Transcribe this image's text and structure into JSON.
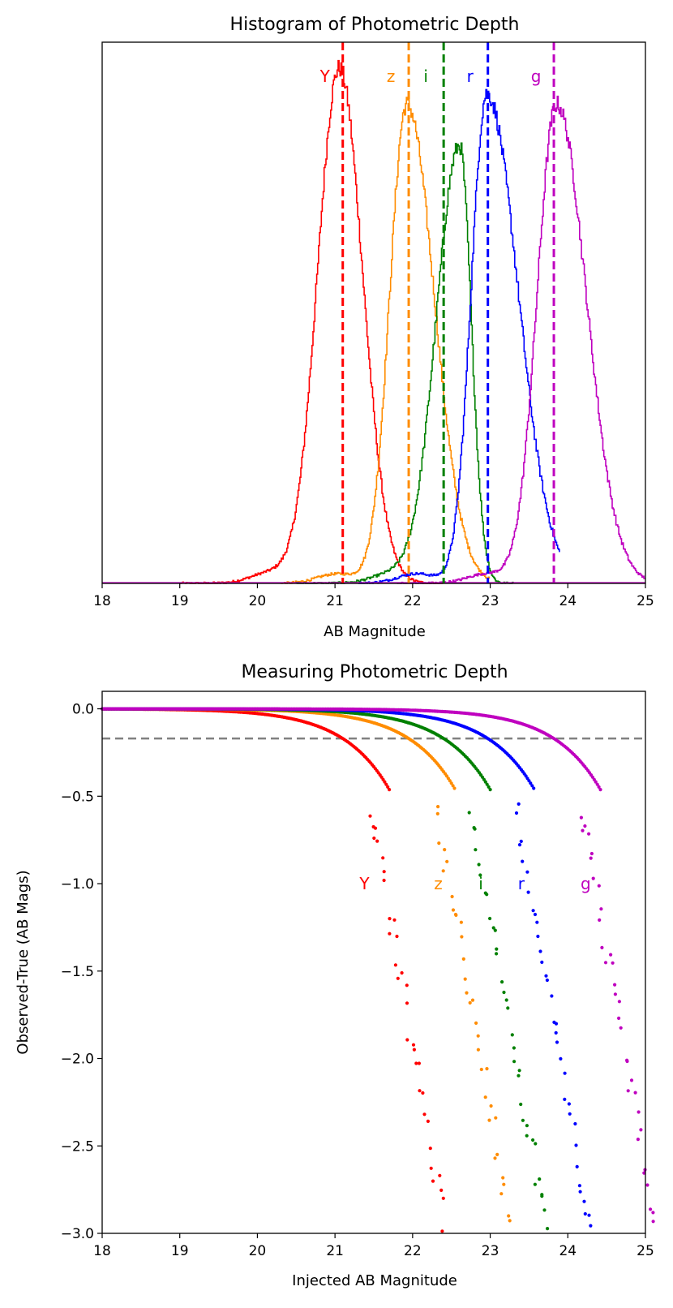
{
  "colors": {
    "Y": "#ff0000",
    "z": "#ff8c00",
    "i": "#008000",
    "r": "#0000ff",
    "g": "#bf00bf",
    "threshold": "#808080"
  },
  "bands": [
    "Y",
    "z",
    "i",
    "r",
    "g"
  ],
  "chart_data": [
    {
      "type": "line",
      "title": "Histogram of Photometric Depth",
      "xlabel": "AB Magnitude",
      "ylabel": "",
      "xlim": [
        18,
        25
      ],
      "xticks": [
        18,
        19,
        20,
        21,
        22,
        23,
        24,
        25
      ],
      "ylim": [
        0,
        1.05
      ],
      "yticks_shown": false,
      "depth_lines": [
        {
          "band": "Y",
          "x": 21.1
        },
        {
          "band": "z",
          "x": 21.95
        },
        {
          "band": "i",
          "x": 22.4
        },
        {
          "band": "r",
          "x": 22.97
        },
        {
          "band": "g",
          "x": 23.82
        }
      ],
      "series": [
        {
          "name": "Y",
          "peak": 21.05,
          "sigma_left": 0.28,
          "sigma_right": 0.3,
          "amp": 1.0,
          "x_range": [
            19.0,
            22.4
          ]
        },
        {
          "name": "z",
          "peak": 21.92,
          "sigma_left": 0.22,
          "sigma_right": 0.35,
          "amp": 0.93,
          "x_range": [
            20.3,
            23.0
          ]
        },
        {
          "name": "i",
          "peak": 22.6,
          "sigma_left": 0.3,
          "sigma_right": 0.15,
          "amp": 0.85,
          "x_range": [
            20.5,
            23.3
          ]
        },
        {
          "name": "r",
          "peak": 22.95,
          "sigma_left": 0.2,
          "sigma_right": 0.4,
          "amp": 0.95,
          "x_range": [
            21.3,
            23.9
          ]
        },
        {
          "name": "g",
          "peak": 23.85,
          "sigma_left": 0.25,
          "sigma_right": 0.38,
          "amp": 0.93,
          "x_range": [
            21.8,
            25.0
          ]
        }
      ]
    },
    {
      "type": "scatter",
      "title": "Measuring Photometric Depth",
      "xlabel": "Injected AB Magnitude",
      "ylabel": "Observed-True (AB Mags)",
      "xlim": [
        18,
        25
      ],
      "ylim": [
        -3.0,
        0.1
      ],
      "xticks": [
        18,
        19,
        20,
        21,
        22,
        23,
        24,
        25
      ],
      "yticks": [
        0.0,
        -0.5,
        -1.0,
        -1.5,
        -2.0,
        -2.5,
        -3.0
      ],
      "ytick_labels": [
        "0.0",
        "−0.5",
        "−1.0",
        "−1.5",
        "−2.0",
        "−2.5",
        "−3.0"
      ],
      "threshold_y": -0.17,
      "series": [
        {
          "name": "Y",
          "depth": 21.1,
          "label_pos": [
            21.38,
            -1.0
          ]
        },
        {
          "name": "z",
          "depth": 21.95,
          "label_pos": [
            22.33,
            -1.0
          ]
        },
        {
          "name": "i",
          "depth": 22.4,
          "label_pos": [
            22.88,
            -1.0
          ]
        },
        {
          "name": "r",
          "depth": 22.97,
          "label_pos": [
            23.4,
            -1.0
          ]
        },
        {
          "name": "g",
          "depth": 23.82,
          "label_pos": [
            24.23,
            -1.0
          ]
        }
      ]
    }
  ]
}
